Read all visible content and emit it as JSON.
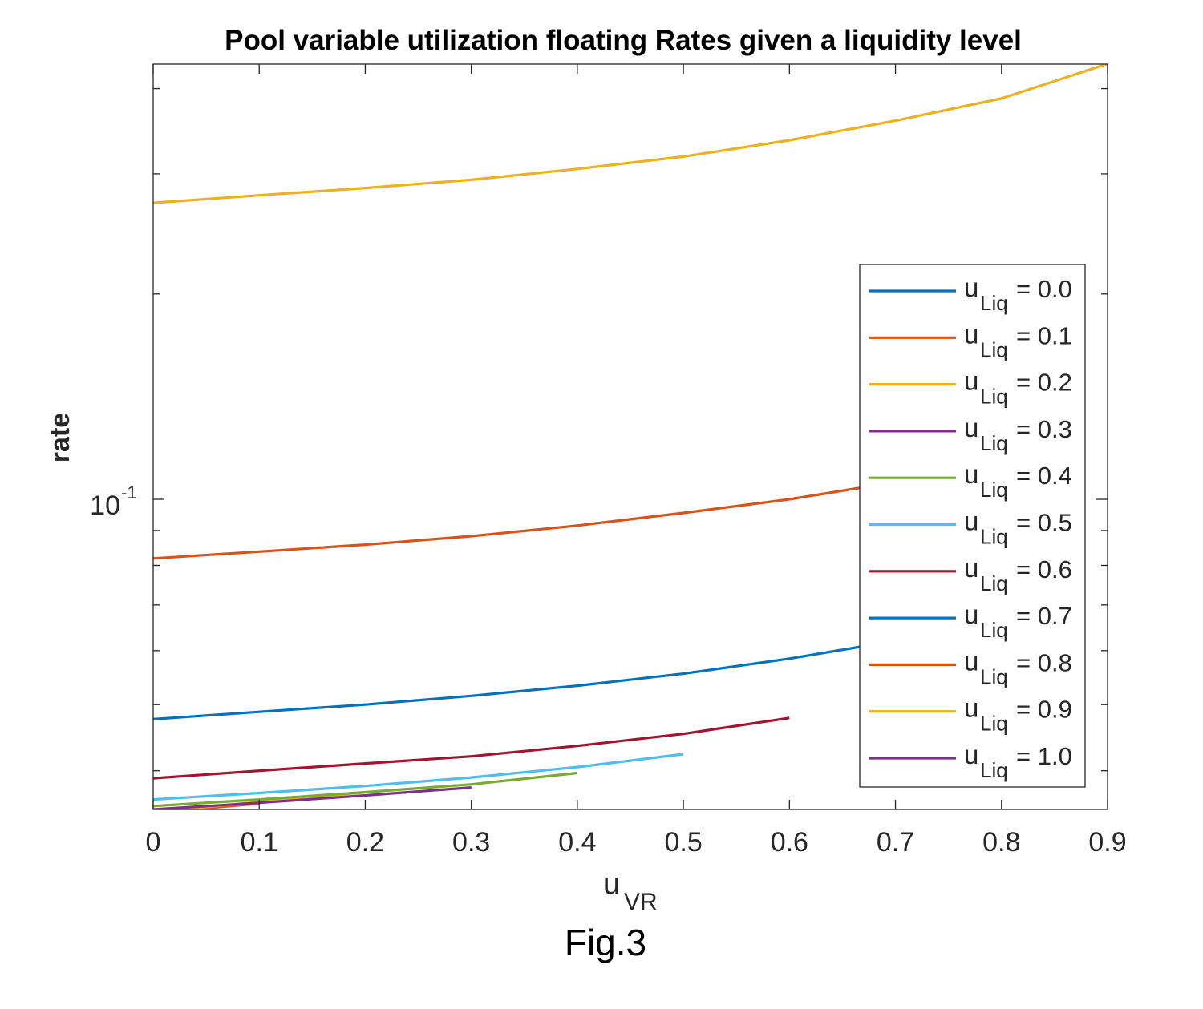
{
  "caption": "Fig.3",
  "chart_data": {
    "type": "line",
    "title": "Pool variable utilization floating Rates given a liquidity level",
    "xlabel": {
      "base": "u",
      "sub": "VR"
    },
    "ylabel": "rate",
    "xlim": [
      0,
      0.9
    ],
    "ylim": [
      0.0351,
      0.4345
    ],
    "yscale": "log",
    "grid": false,
    "legend_position": "right",
    "x_ticks": [
      "0",
      "0.1",
      "0.2",
      "0.3",
      "0.4",
      "0.5",
      "0.6",
      "0.7",
      "0.8",
      "0.9"
    ],
    "y_tick_label": {
      "base": "10",
      "exp": "-1"
    },
    "series": [
      {
        "name": "= 0.0",
        "color": "#0072BD",
        "x": [
          0
        ],
        "y": [
          0.0346
        ]
      },
      {
        "name": "= 0.1",
        "color": "#D95319",
        "x": [
          0,
          0.1
        ],
        "y": [
          0.0347,
          0.0358
        ]
      },
      {
        "name": "= 0.2",
        "color": "#EDB120",
        "x": [
          0,
          0.1,
          0.2
        ],
        "y": [
          0.0348,
          0.036,
          0.0372
        ]
      },
      {
        "name": "= 0.3",
        "color": "#7E2F8E",
        "x": [
          0,
          0.1,
          0.2,
          0.3
        ],
        "y": [
          0.0351,
          0.0359,
          0.0368,
          0.0378
        ]
      },
      {
        "name": "= 0.4",
        "color": "#77AC30",
        "x": [
          0,
          0.1,
          0.2,
          0.3,
          0.4
        ],
        "y": [
          0.0355,
          0.0363,
          0.0372,
          0.0382,
          0.0397
        ]
      },
      {
        "name": "= 0.5",
        "color": "#4DBEEE",
        "x": [
          0,
          0.1,
          0.2,
          0.3,
          0.4,
          0.5
        ],
        "y": [
          0.0363,
          0.0371,
          0.038,
          0.0391,
          0.0405,
          0.0423
        ]
      },
      {
        "name": "= 0.6",
        "color": "#A2142F",
        "x": [
          0,
          0.1,
          0.2,
          0.3,
          0.4,
          0.5,
          0.6
        ],
        "y": [
          0.039,
          0.04,
          0.041,
          0.042,
          0.0435,
          0.0453,
          0.0478
        ]
      },
      {
        "name": "= 0.7",
        "color": "#0072BD",
        "x": [
          0,
          0.1,
          0.2,
          0.3,
          0.4,
          0.5,
          0.6,
          0.7
        ],
        "y": [
          0.0476,
          0.0488,
          0.05,
          0.0515,
          0.0533,
          0.0555,
          0.0584,
          0.062
        ]
      },
      {
        "name": "= 0.8",
        "color": "#D95319",
        "x": [
          0,
          0.1,
          0.2,
          0.3,
          0.4,
          0.5,
          0.6,
          0.7,
          0.8
        ],
        "y": [
          0.0819,
          0.0838,
          0.0858,
          0.0883,
          0.0915,
          0.0955,
          0.1,
          0.106,
          0.113
        ]
      },
      {
        "name": "= 0.9",
        "color": "#EDB120",
        "x": [
          0,
          0.1,
          0.2,
          0.3,
          0.4,
          0.5,
          0.6,
          0.7,
          0.8,
          0.9
        ],
        "y": [
          0.272,
          0.279,
          0.286,
          0.294,
          0.305,
          0.318,
          0.336,
          0.359,
          0.387,
          0.435
        ]
      },
      {
        "name": "= 1.0",
        "color": "#7E2F8E",
        "x": [],
        "y": []
      }
    ],
    "legend_label_base": "u",
    "legend_label_sub": "Liq"
  }
}
